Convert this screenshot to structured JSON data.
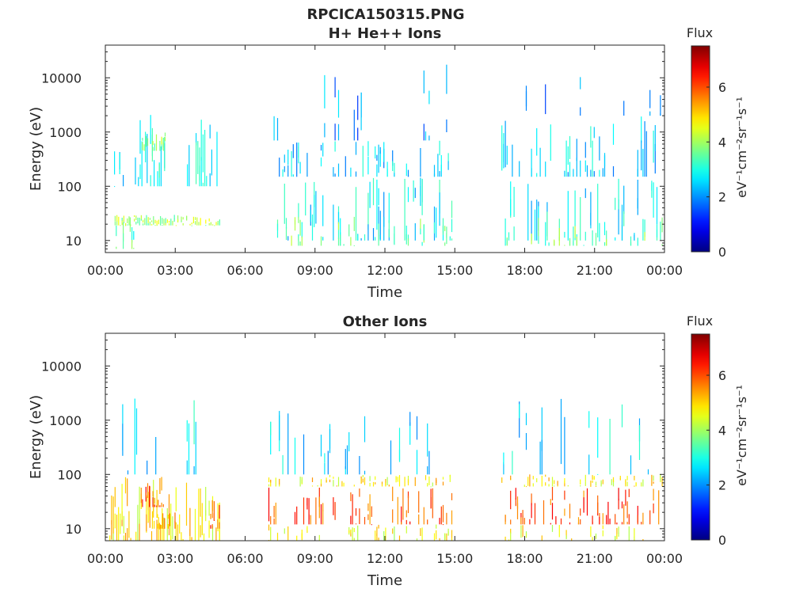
{
  "figure": {
    "title_line1": "RPCICA150315.PNG"
  },
  "chart_data": [
    {
      "type": "heatmap",
      "title": "H+ He++ Ions",
      "xlabel": "Time",
      "ylabel": "Energy (eV)",
      "x_ticks": [
        "00:00",
        "03:00",
        "06:00",
        "09:00",
        "12:00",
        "15:00",
        "18:00",
        "21:00",
        "00:00"
      ],
      "x_range_hours": [
        0,
        24
      ],
      "y_scale": "log",
      "y_ticks": [
        10,
        100,
        1000,
        10000
      ],
      "y_tick_labels": [
        "10",
        "100",
        "1000",
        "10000"
      ],
      "y_range": [
        6,
        40000
      ],
      "colorbar": {
        "label": "Flux",
        "unit_label": "eV⁻¹cm⁻²sr⁻¹s⁻¹",
        "range": [
          0,
          7.5
        ],
        "ticks": [
          0,
          2,
          4,
          6
        ],
        "colormap": "jet"
      },
      "data_intervals_hours": [
        [
          0.3,
          4.9
        ],
        [
          7.0,
          14.9
        ],
        [
          17.0,
          23.9
        ]
      ],
      "bands": [
        {
          "hours": [
            0.3,
            1.5
          ],
          "energy_eV": [
            100,
            600
          ],
          "flux": 2.4,
          "density": 0.35
        },
        {
          "hours": [
            1.4,
            2.6
          ],
          "energy_eV": [
            100,
            2200
          ],
          "flux": 2.8,
          "density": 0.7
        },
        {
          "hours": [
            1.5,
            2.6
          ],
          "energy_eV": [
            450,
            1000
          ],
          "flux": 3.8,
          "density": 0.7
        },
        {
          "hours": [
            3.5,
            4.8
          ],
          "energy_eV": [
            100,
            2200
          ],
          "flux": 2.7,
          "density": 0.6
        },
        {
          "hours": [
            0.4,
            4.9
          ],
          "energy_eV": [
            19,
            30
          ],
          "flux": 4.0,
          "density": 0.8
        },
        {
          "hours": [
            0.3,
            1.5
          ],
          "energy_eV": [
            7,
            30
          ],
          "flux": 3.4,
          "density": 0.3
        },
        {
          "hours": [
            7.0,
            14.9
          ],
          "energy_eV": [
            150,
            700
          ],
          "flux": 2.5,
          "density": 0.35
        },
        {
          "hours": [
            7.0,
            14.9
          ],
          "energy_eV": [
            10,
            150
          ],
          "flux": 2.7,
          "density": 0.3
        },
        {
          "hours": [
            7.0,
            14.9
          ],
          "energy_eV": [
            8,
            30
          ],
          "flux": 3.6,
          "density": 0.3
        },
        {
          "hours": [
            7.0,
            14.9
          ],
          "energy_eV": [
            700,
            20000
          ],
          "flux": 2.0,
          "density": 0.1
        },
        {
          "hours": [
            17.0,
            23.9
          ],
          "energy_eV": [
            150,
            2000
          ],
          "flux": 2.5,
          "density": 0.35
        },
        {
          "hours": [
            17.0,
            23.9
          ],
          "energy_eV": [
            10,
            150
          ],
          "flux": 2.7,
          "density": 0.3
        },
        {
          "hours": [
            17.0,
            23.9
          ],
          "energy_eV": [
            8,
            30
          ],
          "flux": 3.6,
          "density": 0.3
        },
        {
          "hours": [
            17.0,
            23.9
          ],
          "energy_eV": [
            2000,
            15000
          ],
          "flux": 2.0,
          "density": 0.08
        }
      ]
    },
    {
      "type": "heatmap",
      "title": "Other Ions",
      "xlabel": "Time",
      "ylabel": "Energy (eV)",
      "x_ticks": [
        "00:00",
        "03:00",
        "06:00",
        "09:00",
        "12:00",
        "15:00",
        "18:00",
        "21:00",
        "00:00"
      ],
      "x_range_hours": [
        0,
        24
      ],
      "y_scale": "log",
      "y_ticks": [
        10,
        100,
        1000,
        10000
      ],
      "y_tick_labels": [
        "10",
        "100",
        "1000",
        "10000"
      ],
      "y_range": [
        6,
        40000
      ],
      "colorbar": {
        "label": "Flux",
        "unit_label": "eV⁻¹cm⁻²sr⁻¹s⁻¹",
        "range": [
          0,
          7.5
        ],
        "ticks": [
          0,
          2,
          4,
          6
        ],
        "colormap": "jet"
      },
      "data_intervals_hours": [
        [
          0.1,
          4.9
        ],
        [
          7.0,
          14.9
        ],
        [
          17.0,
          23.9
        ]
      ],
      "bands": [
        {
          "hours": [
            0.1,
            4.9
          ],
          "energy_eV": [
            6,
            90
          ],
          "flux": 4.8,
          "density": 0.7
        },
        {
          "hours": [
            1.5,
            2.6
          ],
          "energy_eV": [
            25,
            90
          ],
          "flux": 6.0,
          "density": 0.8
        },
        {
          "hours": [
            2.0,
            3.0
          ],
          "energy_eV": [
            10,
            25
          ],
          "flux": 5.5,
          "density": 0.7
        },
        {
          "hours": [
            4.5,
            4.9
          ],
          "energy_eV": [
            10,
            40
          ],
          "flux": 6.0,
          "density": 0.8
        },
        {
          "hours": [
            0.5,
            4.6
          ],
          "energy_eV": [
            100,
            3000
          ],
          "flux": 2.6,
          "density": 0.2
        },
        {
          "hours": [
            7.0,
            14.9
          ],
          "energy_eV": [
            12,
            60
          ],
          "flux": 6.0,
          "density": 0.45
        },
        {
          "hours": [
            7.0,
            14.9
          ],
          "energy_eV": [
            60,
            100
          ],
          "flux": 4.8,
          "density": 0.4
        },
        {
          "hours": [
            7.0,
            14.9
          ],
          "energy_eV": [
            6,
            12
          ],
          "flux": 4.6,
          "density": 0.3
        },
        {
          "hours": [
            7.0,
            14.9
          ],
          "energy_eV": [
            100,
            1500
          ],
          "flux": 2.6,
          "density": 0.2
        },
        {
          "hours": [
            17.0,
            23.9
          ],
          "energy_eV": [
            12,
            60
          ],
          "flux": 6.0,
          "density": 0.45
        },
        {
          "hours": [
            17.0,
            23.9
          ],
          "energy_eV": [
            60,
            100
          ],
          "flux": 4.8,
          "density": 0.4
        },
        {
          "hours": [
            17.0,
            23.9
          ],
          "energy_eV": [
            6,
            12
          ],
          "flux": 4.6,
          "density": 0.3
        },
        {
          "hours": [
            17.0,
            23.9
          ],
          "energy_eV": [
            100,
            2500
          ],
          "flux": 2.6,
          "density": 0.2
        }
      ]
    }
  ]
}
